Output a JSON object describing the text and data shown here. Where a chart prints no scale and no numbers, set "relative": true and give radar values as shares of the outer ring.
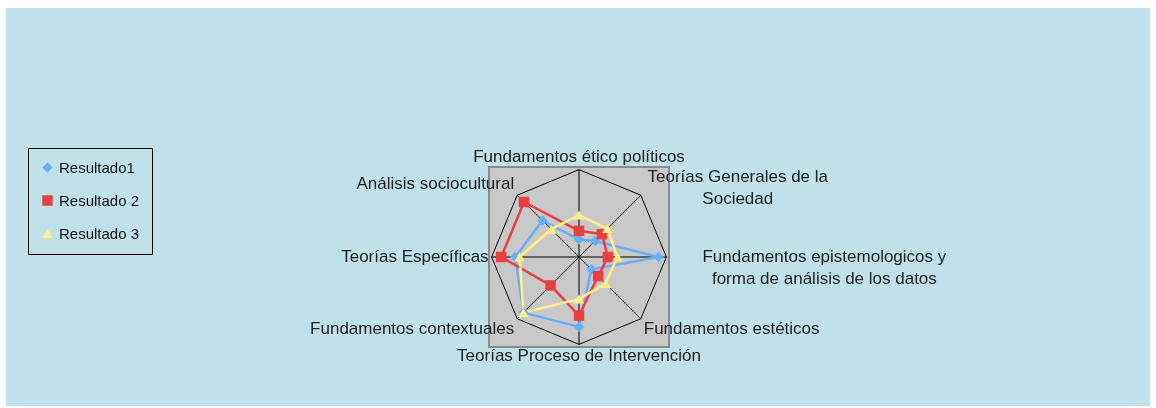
{
  "chart_data": {
    "type": "radar",
    "relative": true,
    "grid": true,
    "legend": "left",
    "marker": "circle",
    "categories": [
      "Fundamentos ético políticos",
      "Teorías Generales de la Sociedad",
      "Fundamentos epistemologicos y forma de análisis de los datos",
      "Fundamentos estéticos",
      "Teorías Proceso de Intervención",
      "Fundamentos contextuales",
      "Teorías Específicas",
      "Análisis sociocultural"
    ],
    "series": [
      {
        "name": "Resultado1",
        "color": "#6aaef5",
        "marker": "diamond",
        "values": [
          0.2,
          0.26,
          0.91,
          0.2,
          0.8,
          0.9,
          0.73,
          0.59
        ]
      },
      {
        "name": "Resultado 2",
        "color": "#e84040",
        "marker": "square",
        "values": [
          0.3,
          0.37,
          0.33,
          0.31,
          0.67,
          0.46,
          0.89,
          0.89
        ]
      },
      {
        "name": "Resultado 3",
        "color": "#fff08a",
        "marker": "triangle",
        "values": [
          0.48,
          0.46,
          0.44,
          0.43,
          0.48,
          0.9,
          0.68,
          0.45
        ]
      }
    ]
  }
}
